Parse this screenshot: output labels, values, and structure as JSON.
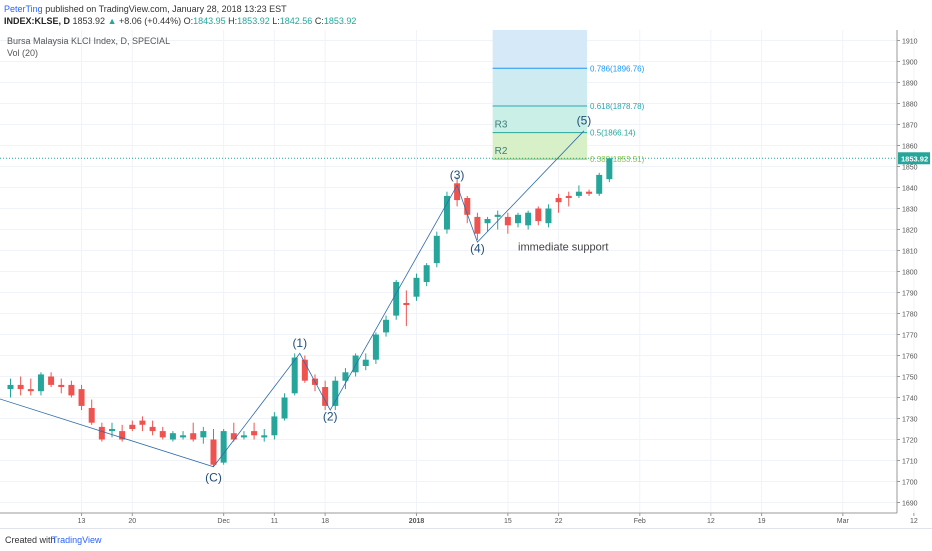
{
  "header": {
    "author": "PeterTing",
    "published": " published on TradingView.com, January 28, 2018 13:23 EST",
    "symbol": "INDEX:KLSE, D",
    "last": "1853.92",
    "arrow": "▲",
    "change": "+8.06 (+0.44%)",
    "o_label": "O:",
    "o": "1843.95",
    "h_label": "H:",
    "h": "1853.92",
    "l_label": "L:",
    "l": "1842.56",
    "c_label": "C:",
    "c": "1853.92"
  },
  "chart_title": "Bursa Malaysia KLCI Index, D, SPECIAL",
  "volume_label": "Vol (20)",
  "footer": {
    "created": "Created with",
    "brand": "TradingView"
  },
  "chart_data": {
    "type": "candlestick",
    "colors": {
      "up": "#26a69a",
      "down": "#ef5350",
      "wave": "#2e6ba8",
      "grid": "#f0f3fa",
      "last_price": "#26a69a"
    },
    "ylim": [
      1685,
      1915
    ],
    "yticks": [
      1690,
      1700,
      1710,
      1720,
      1730,
      1740,
      1750,
      1760,
      1770,
      1780,
      1790,
      1800,
      1810,
      1820,
      1830,
      1840,
      1850,
      1860,
      1870,
      1880,
      1890,
      1900,
      1910
    ],
    "last_price_label": "1853.92",
    "last_price": 1853.92,
    "xticks": [
      {
        "label": "13",
        "i": 7
      },
      {
        "label": "20",
        "i": 12
      },
      {
        "label": "Dec",
        "i": 21
      },
      {
        "label": "11",
        "i": 26
      },
      {
        "label": "18",
        "i": 31
      },
      {
        "label": "2018",
        "i": 40
      },
      {
        "label": "15",
        "i": 49
      },
      {
        "label": "22",
        "i": 54
      },
      {
        "label": "Feb",
        "i": 62
      },
      {
        "label": "12",
        "i": 69
      },
      {
        "label": "19",
        "i": 74
      },
      {
        "label": "Mar",
        "i": 82
      },
      {
        "label": "12",
        "i": 89
      }
    ],
    "candles": [
      {
        "o": 1744,
        "h": 1749,
        "l": 1740,
        "c": 1746
      },
      {
        "o": 1746,
        "h": 1750,
        "l": 1741,
        "c": 1744
      },
      {
        "o": 1744,
        "h": 1749,
        "l": 1741,
        "c": 1743
      },
      {
        "o": 1743,
        "h": 1752,
        "l": 1741,
        "c": 1751
      },
      {
        "o": 1750,
        "h": 1752,
        "l": 1745,
        "c": 1746
      },
      {
        "o": 1746,
        "h": 1749,
        "l": 1742,
        "c": 1745
      },
      {
        "o": 1746,
        "h": 1748,
        "l": 1740,
        "c": 1741
      },
      {
        "o": 1744,
        "h": 1746,
        "l": 1734,
        "c": 1736
      },
      {
        "o": 1735,
        "h": 1739,
        "l": 1727,
        "c": 1728
      },
      {
        "o": 1726,
        "h": 1728,
        "l": 1719,
        "c": 1720
      },
      {
        "o": 1724,
        "h": 1728,
        "l": 1721,
        "c": 1725
      },
      {
        "o": 1724,
        "h": 1727,
        "l": 1719,
        "c": 1720
      },
      {
        "o": 1727,
        "h": 1729,
        "l": 1724,
        "c": 1725
      },
      {
        "o": 1729,
        "h": 1731,
        "l": 1724,
        "c": 1727
      },
      {
        "o": 1726,
        "h": 1729,
        "l": 1722,
        "c": 1724
      },
      {
        "o": 1724,
        "h": 1726,
        "l": 1720,
        "c": 1721
      },
      {
        "o": 1720,
        "h": 1724,
        "l": 1719,
        "c": 1723
      },
      {
        "o": 1721,
        "h": 1724,
        "l": 1720,
        "c": 1722
      },
      {
        "o": 1723,
        "h": 1728,
        "l": 1719,
        "c": 1720
      },
      {
        "o": 1721,
        "h": 1726,
        "l": 1718,
        "c": 1724
      },
      {
        "o": 1720,
        "h": 1725,
        "l": 1707,
        "c": 1708
      },
      {
        "o": 1709,
        "h": 1725,
        "l": 1708,
        "c": 1724
      },
      {
        "o": 1723,
        "h": 1728,
        "l": 1719,
        "c": 1720
      },
      {
        "o": 1721,
        "h": 1724,
        "l": 1720,
        "c": 1722
      },
      {
        "o": 1724,
        "h": 1728,
        "l": 1720,
        "c": 1722
      },
      {
        "o": 1721,
        "h": 1725,
        "l": 1719,
        "c": 1722
      },
      {
        "o": 1722,
        "h": 1733,
        "l": 1720,
        "c": 1731
      },
      {
        "o": 1730,
        "h": 1742,
        "l": 1729,
        "c": 1740
      },
      {
        "o": 1742,
        "h": 1761,
        "l": 1741,
        "c": 1759
      },
      {
        "o": 1758,
        "h": 1760,
        "l": 1747,
        "c": 1748
      },
      {
        "o": 1749,
        "h": 1751,
        "l": 1743,
        "c": 1746
      },
      {
        "o": 1745,
        "h": 1748,
        "l": 1734,
        "c": 1736
      },
      {
        "o": 1736,
        "h": 1750,
        "l": 1734,
        "c": 1748
      },
      {
        "o": 1748,
        "h": 1754,
        "l": 1744,
        "c": 1752
      },
      {
        "o": 1752,
        "h": 1761,
        "l": 1750,
        "c": 1760
      },
      {
        "o": 1755,
        "h": 1761,
        "l": 1753,
        "c": 1758
      },
      {
        "o": 1758,
        "h": 1771,
        "l": 1756,
        "c": 1770
      },
      {
        "o": 1771,
        "h": 1779,
        "l": 1769,
        "c": 1777
      },
      {
        "o": 1779,
        "h": 1796,
        "l": 1777,
        "c": 1795
      },
      {
        "o": 1785,
        "h": 1791,
        "l": 1774,
        "c": 1784
      },
      {
        "o": 1788,
        "h": 1799,
        "l": 1786,
        "c": 1797
      },
      {
        "o": 1795,
        "h": 1804,
        "l": 1793,
        "c": 1803
      },
      {
        "o": 1804,
        "h": 1819,
        "l": 1802,
        "c": 1817
      },
      {
        "o": 1820,
        "h": 1838,
        "l": 1818,
        "c": 1836
      },
      {
        "o": 1842,
        "h": 1845,
        "l": 1831,
        "c": 1834
      },
      {
        "o": 1835,
        "h": 1836,
        "l": 1823,
        "c": 1827
      },
      {
        "o": 1826,
        "h": 1828,
        "l": 1815,
        "c": 1818
      },
      {
        "o": 1823,
        "h": 1826,
        "l": 1819,
        "c": 1825
      },
      {
        "o": 1826,
        "h": 1829,
        "l": 1820,
        "c": 1827
      },
      {
        "o": 1826,
        "h": 1828,
        "l": 1818,
        "c": 1822
      },
      {
        "o": 1823,
        "h": 1828,
        "l": 1821,
        "c": 1827
      },
      {
        "o": 1822,
        "h": 1829,
        "l": 1820,
        "c": 1828
      },
      {
        "o": 1830,
        "h": 1831,
        "l": 1822,
        "c": 1824
      },
      {
        "o": 1823,
        "h": 1832,
        "l": 1821,
        "c": 1830
      },
      {
        "o": 1835,
        "h": 1837,
        "l": 1828,
        "c": 1833
      },
      {
        "o": 1836,
        "h": 1838,
        "l": 1831,
        "c": 1835
      },
      {
        "o": 1836,
        "h": 1841,
        "l": 1835,
        "c": 1838
      },
      {
        "o": 1838,
        "h": 1839,
        "l": 1836,
        "c": 1837
      },
      {
        "o": 1837,
        "h": 1847,
        "l": 1836,
        "c": 1846
      },
      {
        "o": 1843.95,
        "h": 1853.92,
        "l": 1842.56,
        "c": 1853.92
      }
    ],
    "wave_path": [
      {
        "i": -1.5,
        "p": 1740
      },
      {
        "i": 20,
        "p": 1707
      },
      {
        "i": 28.5,
        "p": 1761
      },
      {
        "i": 31.5,
        "p": 1734
      },
      {
        "i": 44,
        "p": 1841
      },
      {
        "i": 46,
        "p": 1814
      },
      {
        "i": 56.5,
        "p": 1867
      }
    ],
    "wave_labels": [
      {
        "text": "(C)",
        "i": 20,
        "p": 1700
      },
      {
        "text": "(1)",
        "i": 28.5,
        "p": 1764
      },
      {
        "text": "(2)",
        "i": 31.5,
        "p": 1729
      },
      {
        "text": "(3)",
        "i": 44,
        "p": 1844
      },
      {
        "text": "(4)",
        "i": 46,
        "p": 1809
      },
      {
        "text": "(5)",
        "i": 56.5,
        "p": 1870
      }
    ],
    "annotation": {
      "text": "immediate support",
      "i": 50,
      "p": 1810
    },
    "fib_box": {
      "i_start": 47.5,
      "i_end": 56.8,
      "levels": [
        {
          "label": "0.382(1853.51)",
          "price": 1853.51,
          "color": "#8bc34a",
          "fill": "#d8f0c8"
        },
        {
          "label": "0.5(1866.14)",
          "price": 1866.14,
          "color": "#26a69a",
          "fill": "#c9efe6"
        },
        {
          "label": "0.618(1878.78)",
          "price": 1878.78,
          "color": "#2aa7b3",
          "fill": "#cdebf0"
        },
        {
          "label": "0.786(1896.76)",
          "price": 1896.76,
          "color": "#2196f3",
          "fill": "#d6e9f8"
        },
        {
          "label": "",
          "price": 1915,
          "color": "#cccccc",
          "fill": "#e4e4e4"
        }
      ]
    },
    "resistances": [
      {
        "label": "R3",
        "price": 1866.14
      },
      {
        "label": "R2",
        "price": 1853.51
      }
    ]
  }
}
